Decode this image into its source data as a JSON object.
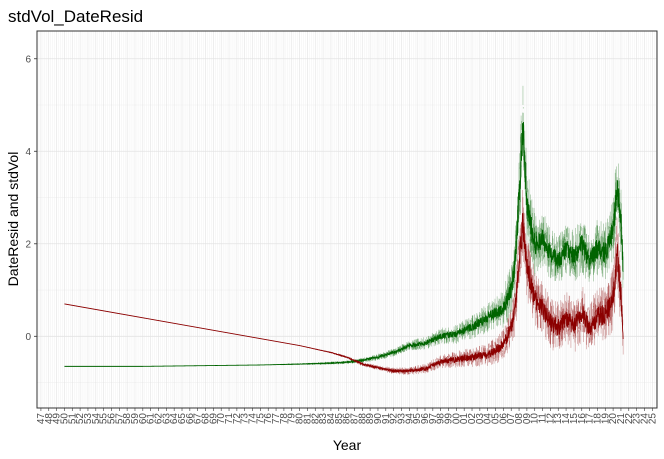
{
  "chart_data": {
    "type": "line",
    "title": "stdVol_DateResid",
    "xlabel": "Year",
    "ylabel": "DateResid and stdVol",
    "xlim": [
      1946.5,
      2025.6
    ],
    "ylim": [
      -1.55,
      6.6
    ],
    "y_ticks": [
      0,
      2,
      4,
      6
    ],
    "x_tick_labels": [
      "47",
      "48",
      "49",
      "50",
      "51",
      "52",
      "53",
      "54",
      "55",
      "56",
      "57",
      "58",
      "59",
      "60",
      "61",
      "62",
      "63",
      "64",
      "65",
      "66",
      "67",
      "68",
      "69",
      "70",
      "71",
      "72",
      "73",
      "74",
      "75",
      "76",
      "77",
      "78",
      "79",
      "80",
      "81",
      "82",
      "83",
      "84",
      "85",
      "86",
      "87",
      "88",
      "89",
      "90",
      "91",
      "92",
      "93",
      "94",
      "95",
      "96",
      "97",
      "98",
      "99",
      "00",
      "01",
      "02",
      "03",
      "04",
      "05",
      "06",
      "07",
      "08",
      "09",
      "10",
      "11",
      "12",
      "13",
      "14",
      "15",
      "16",
      "17",
      "18",
      "19",
      "20",
      "21",
      "22",
      "23",
      "24",
      "25"
    ],
    "x_tick_years": [
      1947,
      1948,
      1949,
      1950,
      1951,
      1952,
      1953,
      1954,
      1955,
      1956,
      1957,
      1958,
      1959,
      1960,
      1961,
      1962,
      1963,
      1964,
      1965,
      1966,
      1967,
      1968,
      1969,
      1970,
      1971,
      1972,
      1973,
      1974,
      1975,
      1976,
      1977,
      1978,
      1979,
      1980,
      1981,
      1982,
      1983,
      1984,
      1985,
      1986,
      1987,
      1988,
      1989,
      1990,
      1991,
      1992,
      1993,
      1994,
      1995,
      1996,
      1997,
      1998,
      1999,
      2000,
      2001,
      2002,
      2003,
      2004,
      2005,
      2006,
      2007,
      2008,
      2009,
      2010,
      2011,
      2012,
      2013,
      2014,
      2015,
      2016,
      2017,
      2018,
      2019,
      2020,
      2021,
      2022,
      2023,
      2024,
      2025
    ],
    "grid": true,
    "legend": "none",
    "series": [
      {
        "color": "#006400",
        "x": [
          1950,
          1955,
          1960,
          1965,
          1970,
          1975,
          1980,
          1984,
          1986,
          1988,
          1990,
          1992,
          1994,
          1996,
          1998,
          2000,
          2002,
          2004,
          2005,
          2006,
          2007,
          2007.5,
          2008,
          2008.5,
          2009,
          2010,
          2011,
          2012,
          2013,
          2014,
          2015,
          2016,
          2017,
          2018,
          2019,
          2020,
          2020.5,
          2021,
          2021.3
        ],
        "y": [
          -0.65,
          -0.65,
          -0.65,
          -0.64,
          -0.63,
          -0.62,
          -0.6,
          -0.58,
          -0.56,
          -0.52,
          -0.45,
          -0.35,
          -0.2,
          -0.15,
          0.0,
          0.05,
          0.2,
          0.4,
          0.5,
          0.6,
          1.0,
          1.6,
          3.0,
          4.5,
          2.8,
          2.0,
          2.1,
          1.8,
          1.6,
          1.9,
          1.7,
          2.0,
          1.6,
          1.9,
          1.8,
          2.3,
          3.2,
          2.5,
          1.4
        ],
        "spread": [
          0.0,
          0.0,
          0.0,
          0.0,
          0.0,
          0.0,
          0.02,
          0.04,
          0.05,
          0.07,
          0.1,
          0.12,
          0.15,
          0.2,
          0.25,
          0.3,
          0.35,
          0.45,
          0.5,
          0.6,
          0.8,
          1.0,
          1.3,
          1.5,
          1.2,
          1.0,
          0.9,
          0.8,
          0.8,
          0.8,
          0.8,
          0.9,
          0.8,
          0.9,
          0.9,
          1.0,
          1.2,
          1.0,
          0.7
        ]
      },
      {
        "color": "#8b0000",
        "x": [
          1950,
          1955,
          1960,
          1965,
          1970,
          1975,
          1980,
          1984,
          1986,
          1988,
          1990,
          1992,
          1994,
          1996,
          1998,
          2000,
          2002,
          2004,
          2005,
          2006,
          2007,
          2007.5,
          2008,
          2008.5,
          2009,
          2010,
          2011,
          2012,
          2013,
          2014,
          2015,
          2016,
          2017,
          2018,
          2019,
          2020,
          2020.5,
          2021,
          2021.3
        ],
        "y": [
          0.7,
          0.55,
          0.4,
          0.25,
          0.1,
          -0.05,
          -0.2,
          -0.35,
          -0.45,
          -0.6,
          -0.68,
          -0.75,
          -0.75,
          -0.7,
          -0.55,
          -0.5,
          -0.45,
          -0.4,
          -0.3,
          -0.2,
          0.2,
          0.6,
          1.6,
          2.5,
          1.5,
          0.8,
          0.6,
          0.3,
          0.2,
          0.4,
          0.2,
          0.5,
          0.2,
          0.4,
          0.5,
          0.8,
          1.8,
          0.9,
          -0.1
        ],
        "spread": [
          0.0,
          0.0,
          0.0,
          0.0,
          0.0,
          0.0,
          0.0,
          0.02,
          0.04,
          0.06,
          0.08,
          0.1,
          0.12,
          0.15,
          0.2,
          0.25,
          0.3,
          0.35,
          0.4,
          0.5,
          0.6,
          0.8,
          1.0,
          1.2,
          1.0,
          0.9,
          0.8,
          0.8,
          0.8,
          0.8,
          0.8,
          0.9,
          0.8,
          0.9,
          0.9,
          1.0,
          1.1,
          1.0,
          0.6
        ]
      }
    ]
  }
}
